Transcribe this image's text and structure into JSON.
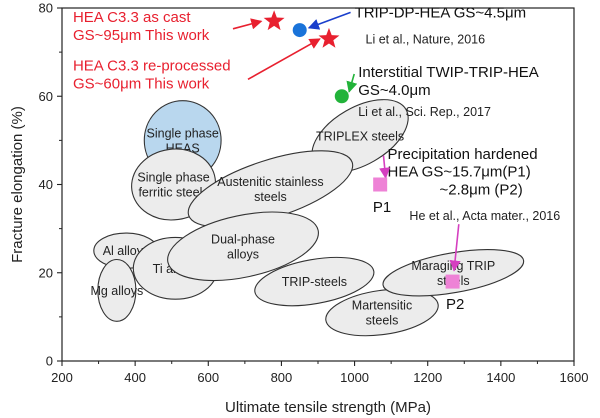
{
  "chart_data": {
    "type": "scatter",
    "xlabel": "Ultimate tensile strength (MPa)",
    "ylabel": "Fracture elongation (%)",
    "xlim": [
      200,
      1600
    ],
    "ylim": [
      0,
      80
    ],
    "xticks": [
      "200",
      "400",
      "600",
      "800",
      "1000",
      "1200",
      "1400",
      "1600"
    ],
    "yticks": [
      "0",
      "20",
      "40",
      "60",
      "80"
    ],
    "grid": false,
    "regions": [
      {
        "name": "Single phase HEAS",
        "lines": [
          "Single phase",
          "HEAS"
        ],
        "cx": 530,
        "cy": 50,
        "rx": 105,
        "ry": 9,
        "angle": 0,
        "fill": "#b9d7ee"
      },
      {
        "name": "TRIPLEX steels",
        "lines": [
          "TRIPLEX steels"
        ],
        "cx": 1015,
        "cy": 51,
        "rx": 145,
        "ry": 6.5,
        "angle": -30,
        "fill": "#ececec"
      },
      {
        "name": "Single phase ferritic steels",
        "lines": [
          "Single phase",
          "ferritic steels"
        ],
        "cx": 505,
        "cy": 40,
        "rx": 115,
        "ry": 8,
        "angle": -8,
        "fill": "#ececec"
      },
      {
        "name": "Austenitic stainless steels",
        "lines": [
          "Austenitic stainless",
          "steels"
        ],
        "cx": 770,
        "cy": 39,
        "rx": 235,
        "ry": 6.5,
        "angle": -18,
        "fill": "#ececec"
      },
      {
        "name": "Al alloys",
        "lines": [
          "Al alloys"
        ],
        "cx": 375,
        "cy": 25,
        "rx": 88,
        "ry": 4,
        "angle": 0,
        "fill": "#ececec"
      },
      {
        "name": "Mg alloys",
        "lines": [
          "Mg alloys"
        ],
        "cx": 350,
        "cy": 16,
        "rx": 52,
        "ry": 7,
        "angle": 0,
        "fill": "#ececec"
      },
      {
        "name": "Ti alloys",
        "lines": [
          "Ti alloys"
        ],
        "cx": 510,
        "cy": 21,
        "rx": 115,
        "ry": 7,
        "angle": 0,
        "fill": "#ececec"
      },
      {
        "name": "Dual-phase alloys",
        "lines": [
          "Dual-phase",
          "alloys"
        ],
        "cx": 695,
        "cy": 26,
        "rx": 210,
        "ry": 7,
        "angle": -12,
        "fill": "#ececec"
      },
      {
        "name": "TRIP-steels",
        "lines": [
          "TRIP-steels"
        ],
        "cx": 890,
        "cy": 18,
        "rx": 165,
        "ry": 5,
        "angle": -10,
        "fill": "#ececec"
      },
      {
        "name": "Martensitic steels",
        "lines": [
          "Martensitic",
          "steels"
        ],
        "cx": 1075,
        "cy": 11,
        "rx": 155,
        "ry": 5,
        "angle": -8,
        "fill": "#ececec"
      },
      {
        "name": "Maraging TRIP steels",
        "lines": [
          "Maraging TRIP",
          "steels"
        ],
        "cx": 1270,
        "cy": 20,
        "rx": 195,
        "ry": 4.5,
        "angle": -10,
        "fill": "#ececec"
      }
    ],
    "points": [
      {
        "name": "HEA C3.3 as cast",
        "x": 780,
        "y": 77,
        "marker": "star",
        "color": "#e8202f"
      },
      {
        "name": "HEA C3.3 re-processed",
        "x": 930,
        "y": 73,
        "marker": "star",
        "color": "#e8202f"
      },
      {
        "name": "TRIP-DP-HEA",
        "x": 850,
        "y": 75,
        "marker": "circle",
        "color": "#1a73d9"
      },
      {
        "name": "Interstitial TWIP-TRIP-HEA",
        "x": 965,
        "y": 60,
        "marker": "circle",
        "color": "#22b33a"
      },
      {
        "name": "P1",
        "x": 1070,
        "y": 40,
        "marker": "square",
        "color": "#ee82d6"
      },
      {
        "name": "P2",
        "x": 1268,
        "y": 18,
        "marker": "square",
        "color": "#ee82d6"
      }
    ],
    "annotations": [
      {
        "key": "asCast",
        "lines": [
          "HEA C3.3  as cast",
          "GS~95μm  This work"
        ],
        "color": "#e8202f",
        "x": 230,
        "y": 78,
        "size": 15,
        "arrow_to": {
          "x": 745,
          "y": 77
        }
      },
      {
        "key": "reproc",
        "lines": [
          "HEA C3.3 re-processed",
          "GS~60μm  This work"
        ],
        "color": "#e8202f",
        "x": 230,
        "y": 67,
        "size": 15,
        "arrow_to": {
          "x": 905,
          "y": 73
        }
      },
      {
        "key": "tripdp",
        "lines": [
          "TRIP-DP-HEA GS~4.5μm"
        ],
        "color": "#111111",
        "x": 1000,
        "y": 79,
        "size": 15,
        "arrow_to": {
          "x": 875,
          "y": 75.5
        }
      },
      {
        "key": "tripdpRef",
        "lines": [
          "Li et al., Nature, 2016"
        ],
        "color": "#222222",
        "x": 1030,
        "y": 73,
        "size": 12.5
      },
      {
        "key": "twip",
        "lines": [
          "Interstitial TWIP-TRIP-HEA",
          "GS~4.0μm"
        ],
        "color": "#111111",
        "x": 1010,
        "y": 65.5,
        "size": 15,
        "arrow_to": {
          "x": 985,
          "y": 61
        }
      },
      {
        "key": "twipRef",
        "lines": [
          "Li et al., Sci. Rep., 2017"
        ],
        "color": "#222222",
        "x": 1010,
        "y": 56.5,
        "size": 12.5
      },
      {
        "key": "precip",
        "lines": [
          "Precipitation hardened",
          "HEA GS~15.7μm(P1)",
          "~2.8μm (P2)"
        ],
        "color": "#111111",
        "x": 1090,
        "y": 47,
        "size": 15,
        "arrow_to": {
          "x": 1085,
          "y": 41.5
        }
      },
      {
        "key": "heRef",
        "lines": [
          "He et al., Acta mater., 2016"
        ],
        "color": "#222222",
        "x": 1150,
        "y": 33,
        "size": 12.5
      },
      {
        "key": "p1",
        "lines": [
          "P1"
        ],
        "color": "#111111",
        "x": 1050,
        "y": 35,
        "size": 15
      },
      {
        "key": "p2",
        "lines": [
          "P2"
        ],
        "color": "#111111",
        "x": 1250,
        "y": 13,
        "size": 15
      }
    ]
  }
}
